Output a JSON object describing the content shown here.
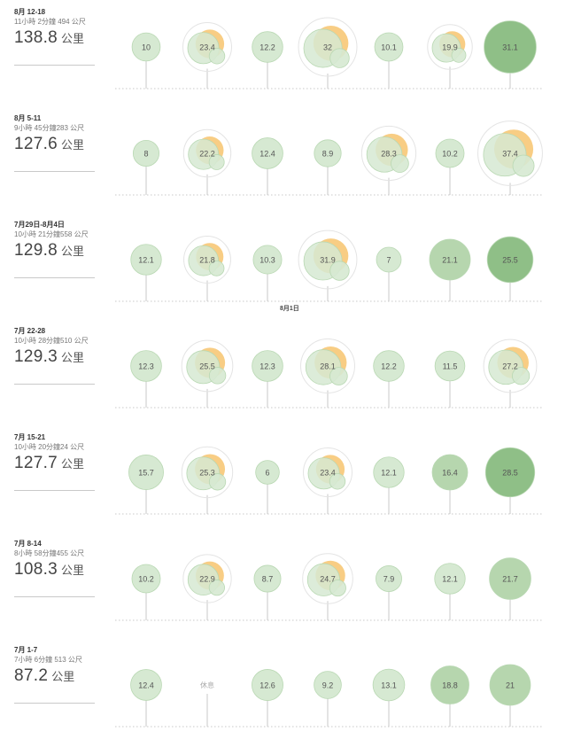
{
  "colors": {
    "light": "#d6e9d2",
    "medium": "#b6d6ae",
    "dark": "#8fbf87",
    "stroke": "#b9d8b3",
    "accent": "#f7c877",
    "halo": "#e4e4e4",
    "line": "#c9c9c9"
  },
  "unit_label": "公里",
  "rest_label": "休息",
  "marker_label": "8月1日",
  "chart_data": {
    "type": "bubble",
    "weeks": [
      {
        "range": "8月 12-18",
        "duration": "11小時 2分鐘 494 公尺",
        "total": "138.8",
        "values": [
          10,
          23.4,
          12.2,
          32,
          10.1,
          19.9,
          31.1
        ],
        "multi": [
          false,
          true,
          false,
          true,
          false,
          true,
          false
        ]
      },
      {
        "range": "8月 5-11",
        "duration": "9小時 45分鐘283 公尺",
        "total": "127.6",
        "values": [
          8,
          22.2,
          12.4,
          8.9,
          28.3,
          10.2,
          37.4
        ],
        "multi": [
          false,
          true,
          false,
          false,
          true,
          false,
          true
        ]
      },
      {
        "range": "7月29日-8月4日",
        "duration": "10小時 21分鐘558 公尺",
        "total": "129.8",
        "values": [
          12.1,
          21.8,
          10.3,
          31.9,
          7,
          21.1,
          25.5
        ],
        "multi": [
          false,
          true,
          false,
          true,
          false,
          false,
          false
        ]
      },
      {
        "range": "7月 22-28",
        "duration": "10小時 28分鐘510 公尺",
        "total": "129.3",
        "values": [
          12.3,
          25.5,
          12.3,
          28.1,
          12.2,
          11.5,
          27.2
        ],
        "multi": [
          false,
          true,
          false,
          true,
          false,
          false,
          true
        ]
      },
      {
        "range": "7月 15-21",
        "duration": "10小時 20分鐘24 公尺",
        "total": "127.7",
        "values": [
          15.7,
          25.3,
          6,
          23.4,
          12.1,
          16.4,
          28.5
        ],
        "multi": [
          false,
          true,
          false,
          true,
          false,
          false,
          false
        ]
      },
      {
        "range": "7月 8-14",
        "duration": "8小時 58分鐘455 公尺",
        "total": "108.3",
        "values": [
          10.2,
          22.9,
          8.7,
          24.7,
          7.9,
          12.1,
          21.7
        ],
        "multi": [
          false,
          true,
          false,
          true,
          false,
          false,
          false
        ]
      },
      {
        "range": "7月 1-7",
        "duration": "7小時 6分鐘 513 公尺",
        "total": "87.2",
        "values": [
          12.4,
          null,
          12.6,
          9.2,
          13.1,
          18.8,
          21
        ],
        "multi": [
          false,
          false,
          false,
          false,
          false,
          false,
          false
        ]
      }
    ]
  }
}
